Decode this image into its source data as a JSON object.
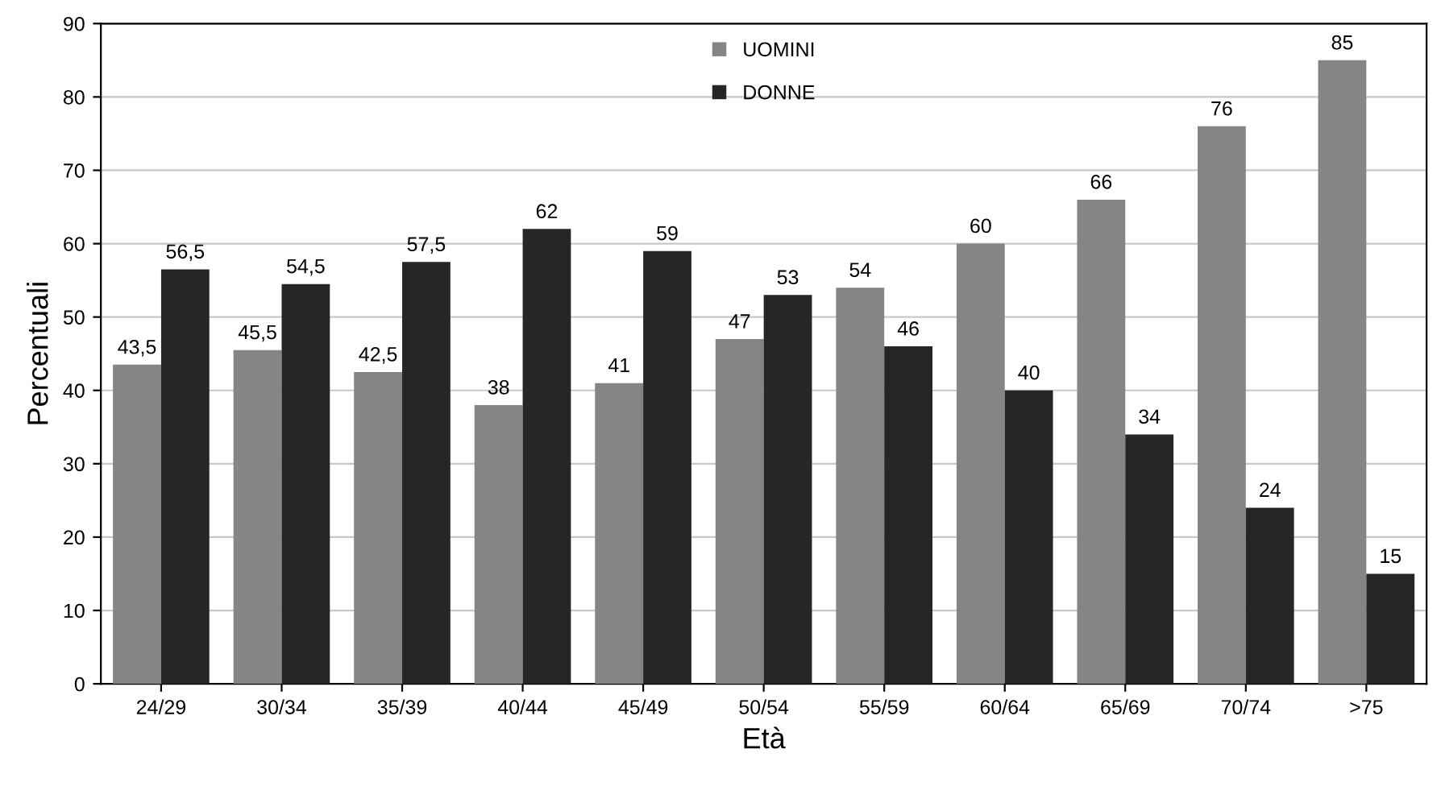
{
  "chart_data": {
    "type": "bar",
    "xlabel": "Età",
    "ylabel": "Percentuali",
    "categories": [
      "24/29",
      "30/34",
      "35/39",
      "40/44",
      "45/49",
      "50/54",
      "55/59",
      "60/64",
      "65/69",
      "70/74",
      ">75"
    ],
    "series": [
      {
        "name": "UOMINI",
        "color": "#858585",
        "values": [
          43.5,
          45.5,
          42.5,
          38,
          41,
          47,
          54,
          60,
          66,
          76,
          85
        ],
        "value_labels": [
          "43,5",
          "45,5",
          "42,5",
          "38",
          "41",
          "47",
          "54",
          "60",
          "66",
          "76",
          "85"
        ]
      },
      {
        "name": "DONNE",
        "color": "#262626",
        "values": [
          56.5,
          54.5,
          57.5,
          62,
          59,
          53,
          46,
          40,
          34,
          24,
          15
        ],
        "value_labels": [
          "56,5",
          "54,5",
          "57,5",
          "62",
          "59",
          "53",
          "46",
          "40",
          "34",
          "24",
          "15"
        ]
      }
    ],
    "ylim": [
      0,
      90
    ],
    "yticks": [
      0,
      10,
      20,
      30,
      40,
      50,
      60,
      70,
      80,
      90
    ],
    "grid": "y",
    "legend": "top"
  }
}
